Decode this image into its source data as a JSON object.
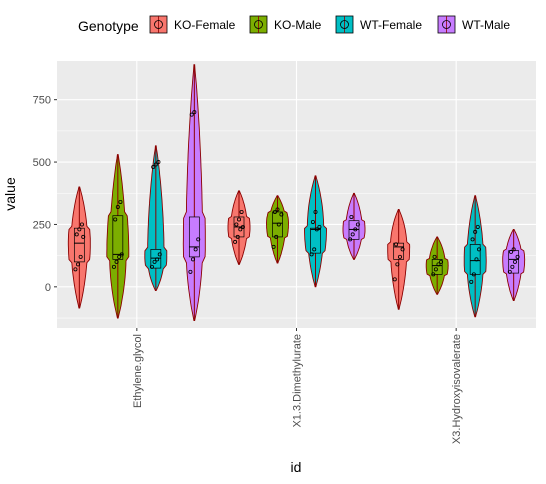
{
  "chart_data": {
    "type": "violin",
    "xlabel": "id",
    "ylabel": "value",
    "categories": [
      "Ethylene.glycol",
      "X1.3.Dimethylurate",
      "X3.Hydroxyisovalerate"
    ],
    "ylim": [
      -165,
      905
    ],
    "yticks": [
      0,
      250,
      500,
      750
    ],
    "grid": true,
    "legend": {
      "title": "Genotype",
      "position": "top",
      "entries": [
        {
          "name": "KO-Female",
          "color": "#F8766D"
        },
        {
          "name": "KO-Male",
          "color": "#7CAE00"
        },
        {
          "name": "WT-Female",
          "color": "#00BFC4"
        },
        {
          "name": "WT-Male",
          "color": "#C77CFF"
        }
      ]
    },
    "groups": [
      {
        "category": "Ethylene.glycol",
        "series": "KO-Female",
        "min": -85,
        "q1": 100,
        "median": 175,
        "q3": 235,
        "max": 400,
        "points": [
          70,
          90,
          120,
          200,
          210,
          230,
          250
        ]
      },
      {
        "category": "Ethylene.glycol",
        "series": "KO-Male",
        "min": -125,
        "q1": 110,
        "median": 130,
        "q3": 285,
        "max": 530,
        "points": [
          80,
          100,
          120,
          130,
          270,
          320,
          340
        ]
      },
      {
        "category": "Ethylene.glycol",
        "series": "WT-Female",
        "min": -15,
        "q1": 75,
        "median": 115,
        "q3": 150,
        "max": 565,
        "points": [
          80,
          100,
          110,
          130,
          480,
          490,
          500
        ]
      },
      {
        "category": "Ethylene.glycol",
        "series": "WT-Male",
        "min": -135,
        "q1": 120,
        "median": 160,
        "q3": 280,
        "max": 890,
        "points": [
          60,
          110,
          150,
          190,
          690,
          700
        ]
      },
      {
        "category": "X1.3.Dimethylurate",
        "series": "KO-Female",
        "min": 90,
        "q1": 200,
        "median": 240,
        "q3": 280,
        "max": 385,
        "points": [
          180,
          200,
          230,
          240,
          250,
          270,
          300
        ]
      },
      {
        "category": "X1.3.Dimethylurate",
        "series": "KO-Male",
        "min": 95,
        "q1": 200,
        "median": 255,
        "q3": 300,
        "max": 365,
        "points": [
          160,
          200,
          250,
          290,
          300,
          310
        ]
      },
      {
        "category": "X1.3.Dimethylurate",
        "series": "WT-Female",
        "min": 0,
        "q1": 135,
        "median": 230,
        "q3": 235,
        "max": 445,
        "points": [
          130,
          150,
          230,
          240,
          260,
          300
        ]
      },
      {
        "category": "X1.3.Dimethylurate",
        "series": "WT-Male",
        "min": 110,
        "q1": 190,
        "median": 230,
        "q3": 265,
        "max": 375,
        "points": [
          190,
          210,
          230,
          250,
          280
        ]
      },
      {
        "category": "X3.Hydroxyisovalerate",
        "series": "KO-Female",
        "min": -90,
        "q1": 110,
        "median": 160,
        "q3": 175,
        "max": 310,
        "points": [
          30,
          90,
          120,
          150,
          170
        ]
      },
      {
        "category": "X3.Hydroxyisovalerate",
        "series": "KO-Male",
        "min": -30,
        "q1": 50,
        "median": 85,
        "q3": 110,
        "max": 200,
        "points": [
          50,
          70,
          90,
          100,
          120
        ]
      },
      {
        "category": "X3.Hydroxyisovalerate",
        "series": "WT-Female",
        "min": -120,
        "q1": 50,
        "median": 105,
        "q3": 170,
        "max": 365,
        "points": [
          20,
          50,
          110,
          150,
          190,
          220,
          240
        ]
      },
      {
        "category": "X3.Hydroxyisovalerate",
        "series": "WT-Male",
        "min": -55,
        "q1": 55,
        "median": 110,
        "q3": 145,
        "max": 230,
        "points": [
          60,
          80,
          100,
          120,
          140,
          150
        ]
      }
    ]
  }
}
